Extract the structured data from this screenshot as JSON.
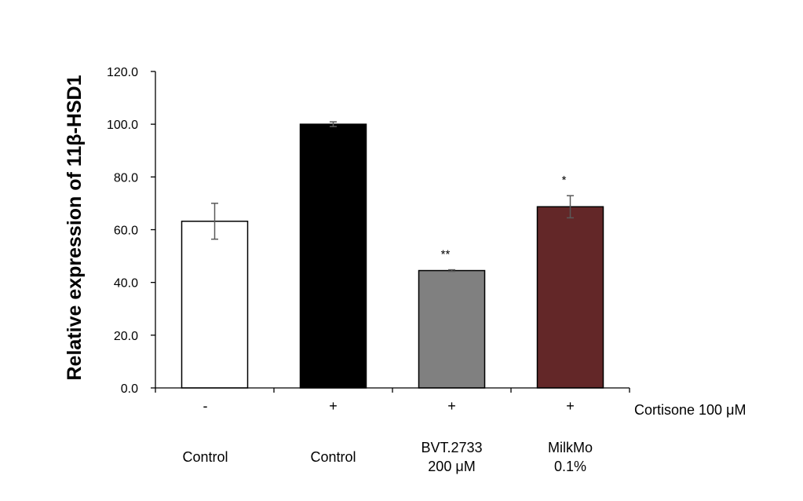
{
  "chart_data": {
    "type": "bar",
    "title": "",
    "ylabel": "Relative expression of 11β-HSD1",
    "xlabel": "",
    "ylim": [
      0,
      120
    ],
    "yticks": [
      "0.0",
      "20.0",
      "40.0",
      "60.0",
      "80.0",
      "100.0",
      "120.0"
    ],
    "grid": false,
    "treatment_label": "Cortisone 100 μM",
    "categories": [
      {
        "treatment": "-",
        "label_lines": [
          "Control"
        ],
        "value": 63.2,
        "error": 6.8,
        "significance": "",
        "color": "#ffffff"
      },
      {
        "treatment": "+",
        "label_lines": [
          "Control"
        ],
        "value": 100.0,
        "error": 0.9,
        "significance": "",
        "color": "#000000"
      },
      {
        "treatment": "+",
        "label_lines": [
          "BVT.2733",
          "200 μM"
        ],
        "value": 44.5,
        "error": 0.3,
        "significance": "**",
        "color": "#808080"
      },
      {
        "treatment": "+",
        "label_lines": [
          "MilkMo",
          "0.1%"
        ],
        "value": 68.7,
        "error": 4.2,
        "significance": "*",
        "color": "#632728"
      }
    ]
  }
}
